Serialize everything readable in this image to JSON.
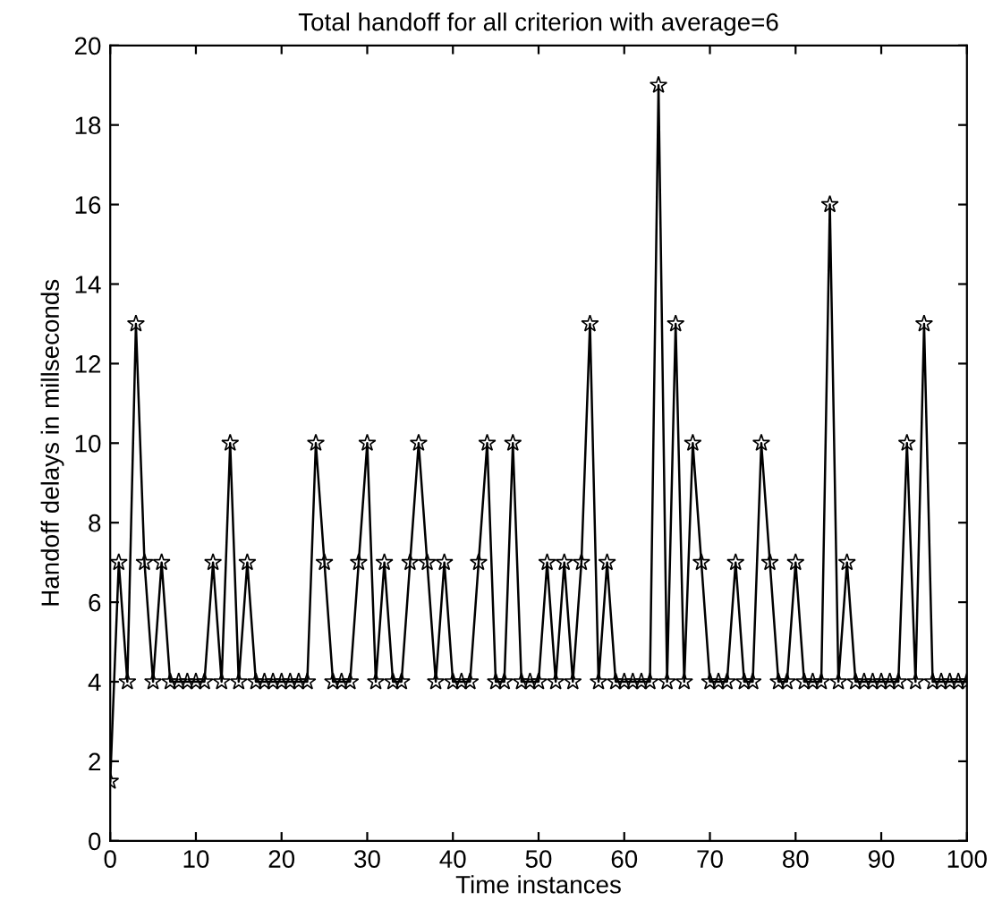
{
  "chart_data": {
    "type": "line",
    "title": "Total handoff for all criterion with average=6",
    "xlabel": "Time instances",
    "ylabel": "Handoff delays in millseconds",
    "x": [
      0,
      1,
      2,
      3,
      4,
      5,
      6,
      7,
      8,
      9,
      10,
      11,
      12,
      13,
      14,
      15,
      16,
      17,
      18,
      19,
      20,
      21,
      22,
      23,
      24,
      25,
      26,
      27,
      28,
      29,
      30,
      31,
      32,
      33,
      34,
      35,
      36,
      37,
      38,
      39,
      40,
      41,
      42,
      43,
      44,
      45,
      46,
      47,
      48,
      49,
      50,
      51,
      52,
      53,
      54,
      55,
      56,
      57,
      58,
      59,
      60,
      61,
      62,
      63,
      64,
      65,
      66,
      67,
      68,
      69,
      70,
      71,
      72,
      73,
      74,
      75,
      76,
      77,
      78,
      79,
      80,
      81,
      82,
      83,
      84,
      85,
      86,
      87,
      88,
      89,
      90,
      91,
      92,
      93,
      94,
      95,
      96,
      97,
      98,
      99,
      100
    ],
    "series": [
      {
        "color": "#000000",
        "values": [
          1.5,
          7,
          4,
          13,
          7,
          4,
          7,
          4,
          4,
          4,
          4,
          4,
          7,
          4,
          10,
          4,
          7,
          4,
          4,
          4,
          4,
          4,
          4,
          4,
          10,
          7,
          4,
          4,
          4,
          7,
          10,
          4,
          7,
          4,
          4,
          7,
          10,
          7,
          4,
          7,
          4,
          4,
          4,
          7,
          10,
          4,
          4,
          10,
          4,
          4,
          4,
          7,
          4,
          7,
          4,
          7,
          13,
          4,
          7,
          4,
          4,
          4,
          4,
          4,
          19,
          4,
          13,
          4,
          10,
          7,
          4,
          4,
          4,
          7,
          4,
          4,
          10,
          7,
          4,
          4,
          7,
          4,
          4,
          4,
          16,
          4,
          7,
          4,
          4,
          4,
          4,
          4,
          4,
          10,
          4,
          13,
          4,
          4,
          4,
          4,
          4
        ]
      }
    ],
    "xlim": [
      0,
      100
    ],
    "ylim": [
      0,
      20
    ],
    "xticks": [
      0,
      10,
      20,
      30,
      40,
      50,
      60,
      70,
      80,
      90,
      100
    ],
    "yticks": [
      0,
      2,
      4,
      6,
      8,
      10,
      12,
      14,
      16,
      18,
      20
    ],
    "marker": "star",
    "line_style": "solid",
    "grid": false,
    "legend": false
  }
}
